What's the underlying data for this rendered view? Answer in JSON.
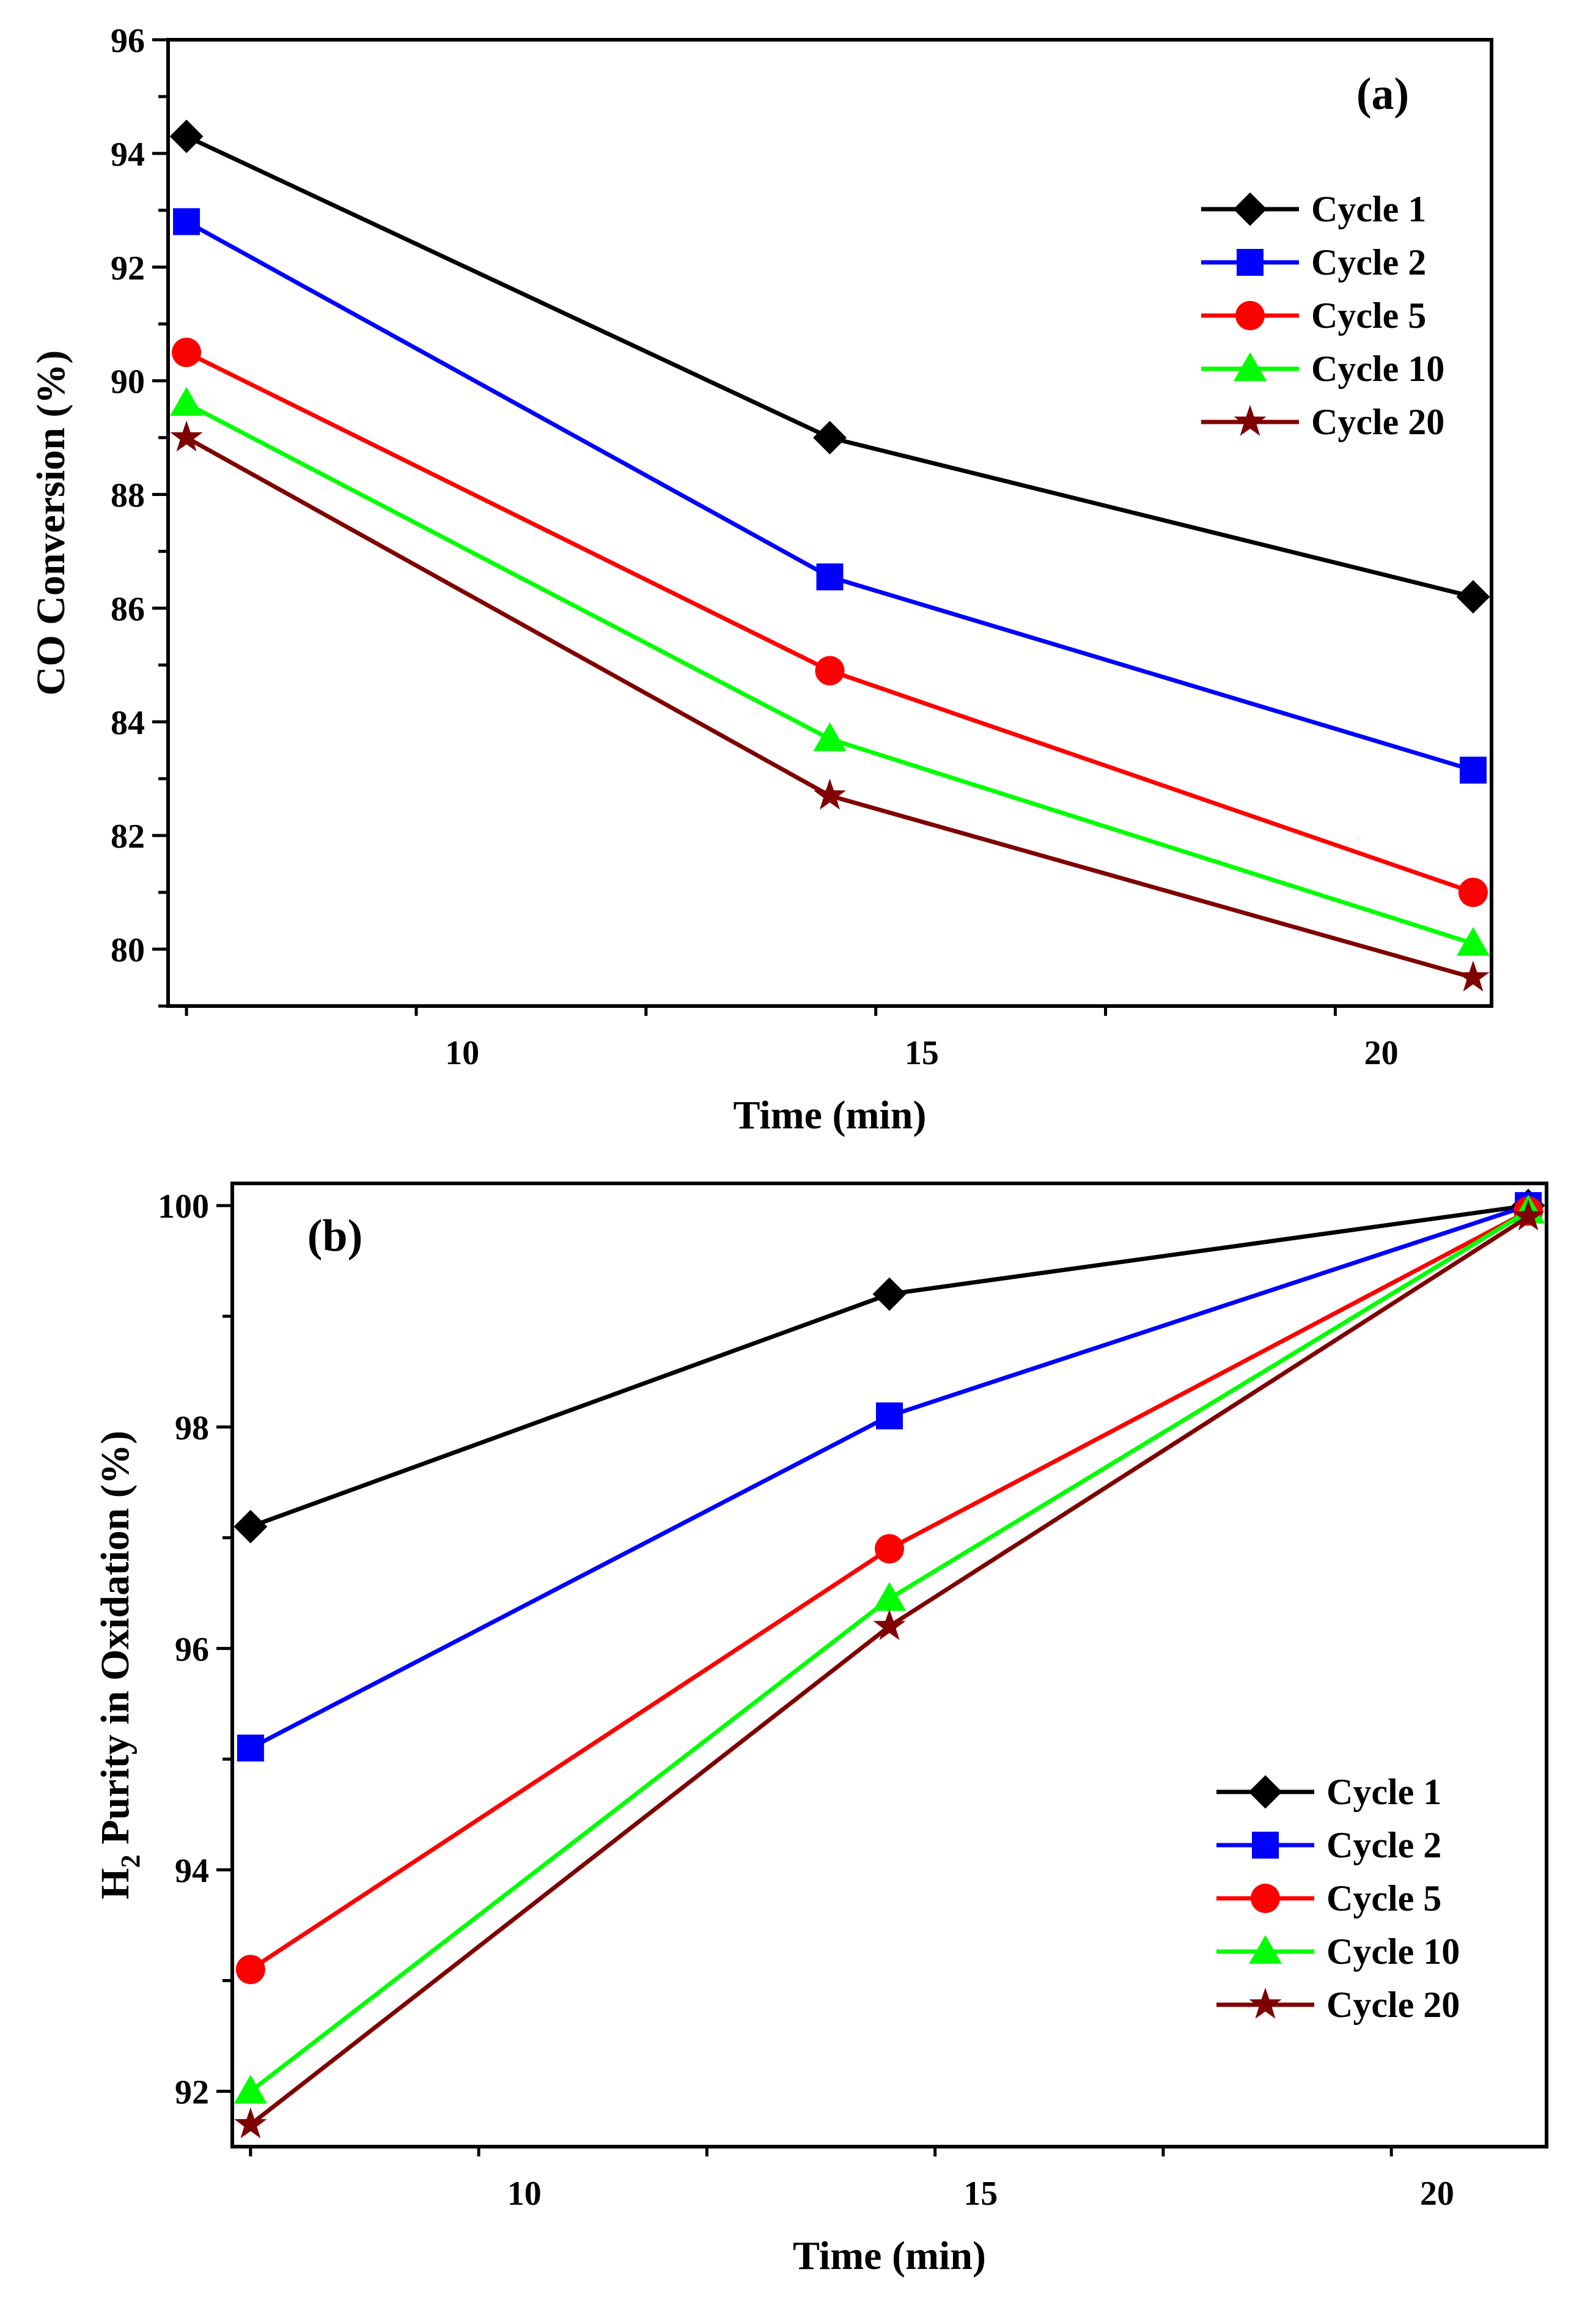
{
  "chart_data": [
    {
      "type": "line",
      "panel_label": "(a)",
      "xlabel": "Time (min)",
      "ylabel": "CO Conversion (%)",
      "xlim": [
        6.8,
        21.2
      ],
      "ylim": [
        79,
        96
      ],
      "xticks": [
        10,
        15,
        20
      ],
      "yticks": [
        80,
        82,
        84,
        86,
        88,
        90,
        92,
        94,
        96
      ],
      "x": [
        7,
        14,
        21
      ],
      "legend_position": "top-right",
      "series": [
        {
          "name": "Cycle 1",
          "color": "#000000",
          "marker": "diamond",
          "values": [
            94.3,
            89.0,
            86.2
          ]
        },
        {
          "name": "Cycle 2",
          "color": "#0000ff",
          "marker": "square",
          "values": [
            92.8,
            86.55,
            83.15
          ]
        },
        {
          "name": "Cycle 5",
          "color": "#ff0000",
          "marker": "circle",
          "values": [
            90.5,
            84.9,
            81.0
          ]
        },
        {
          "name": "Cycle 10",
          "color": "#00ff00",
          "marker": "triangle",
          "values": [
            89.6,
            83.7,
            80.1
          ]
        },
        {
          "name": "Cycle 20",
          "color": "#7f0000",
          "marker": "star",
          "values": [
            89.0,
            82.7,
            79.5
          ]
        }
      ]
    },
    {
      "type": "line",
      "panel_label": "(b)",
      "xlabel": "Time (min)",
      "ylabel_main": "H",
      "ylabel_sub": "2",
      "ylabel_rest": " Purity in Oxidation (%)",
      "xlim": [
        6.8,
        21.2
      ],
      "ylim": [
        91.5,
        100.2
      ],
      "xticks": [
        10,
        15,
        20
      ],
      "yticks": [
        92,
        94,
        96,
        98,
        100
      ],
      "x": [
        7,
        14,
        21
      ],
      "legend_position": "bottom-right",
      "series": [
        {
          "name": "Cycle 1",
          "color": "#000000",
          "marker": "diamond",
          "values": [
            97.1,
            99.2,
            100.0
          ]
        },
        {
          "name": "Cycle 2",
          "color": "#0000ff",
          "marker": "square",
          "values": [
            95.1,
            98.1,
            100.0
          ]
        },
        {
          "name": "Cycle 5",
          "color": "#ff0000",
          "marker": "circle",
          "values": [
            93.1,
            96.9,
            99.95
          ]
        },
        {
          "name": "Cycle 10",
          "color": "#00ff00",
          "marker": "triangle",
          "values": [
            92.0,
            96.45,
            99.95
          ]
        },
        {
          "name": "Cycle 20",
          "color": "#7f0000",
          "marker": "star",
          "values": [
            91.7,
            96.2,
            99.9
          ]
        }
      ]
    }
  ]
}
